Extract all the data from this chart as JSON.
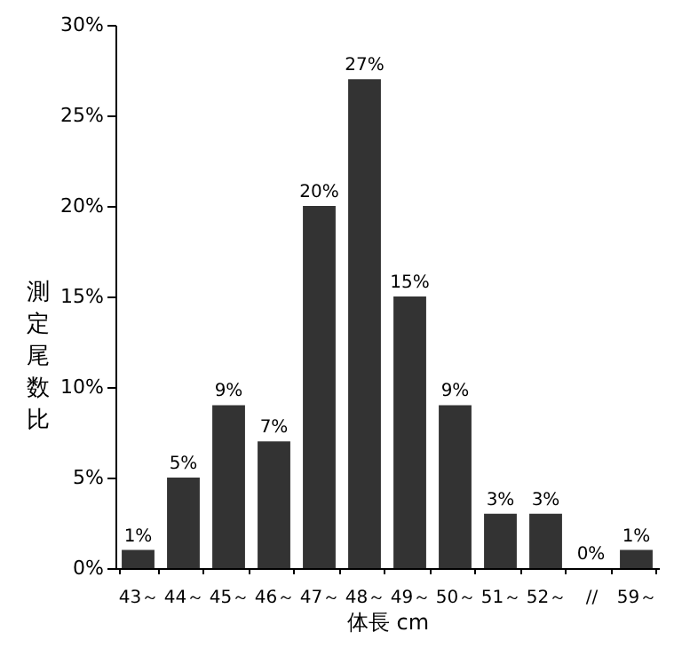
{
  "chart_data": {
    "type": "bar",
    "xlabel": "体長 cm",
    "ylabel": "測定尾数比",
    "categories": [
      "43～",
      "44～",
      "45～",
      "46～",
      "47～",
      "48～",
      "49～",
      "50～",
      "51～",
      "52～",
      "//",
      "59～"
    ],
    "values": [
      1,
      5,
      9,
      7,
      20,
      27,
      15,
      9,
      3,
      3,
      0,
      1
    ],
    "value_labels": [
      "1%",
      "5%",
      "9%",
      "7%",
      "20%",
      "27%",
      "15%",
      "9%",
      "3%",
      "3%",
      "0%",
      "1%"
    ],
    "color": "#333333",
    "ylim": [
      0,
      30
    ],
    "yticks": [
      {
        "value": 0,
        "label": "0%"
      },
      {
        "value": 5,
        "label": "5%"
      },
      {
        "value": 10,
        "label": "10%"
      },
      {
        "value": 15,
        "label": "15%"
      },
      {
        "value": 20,
        "label": "20%"
      },
      {
        "value": 25,
        "label": "25%"
      },
      {
        "value": 30,
        "label": "30%"
      }
    ],
    "grid": false
  }
}
